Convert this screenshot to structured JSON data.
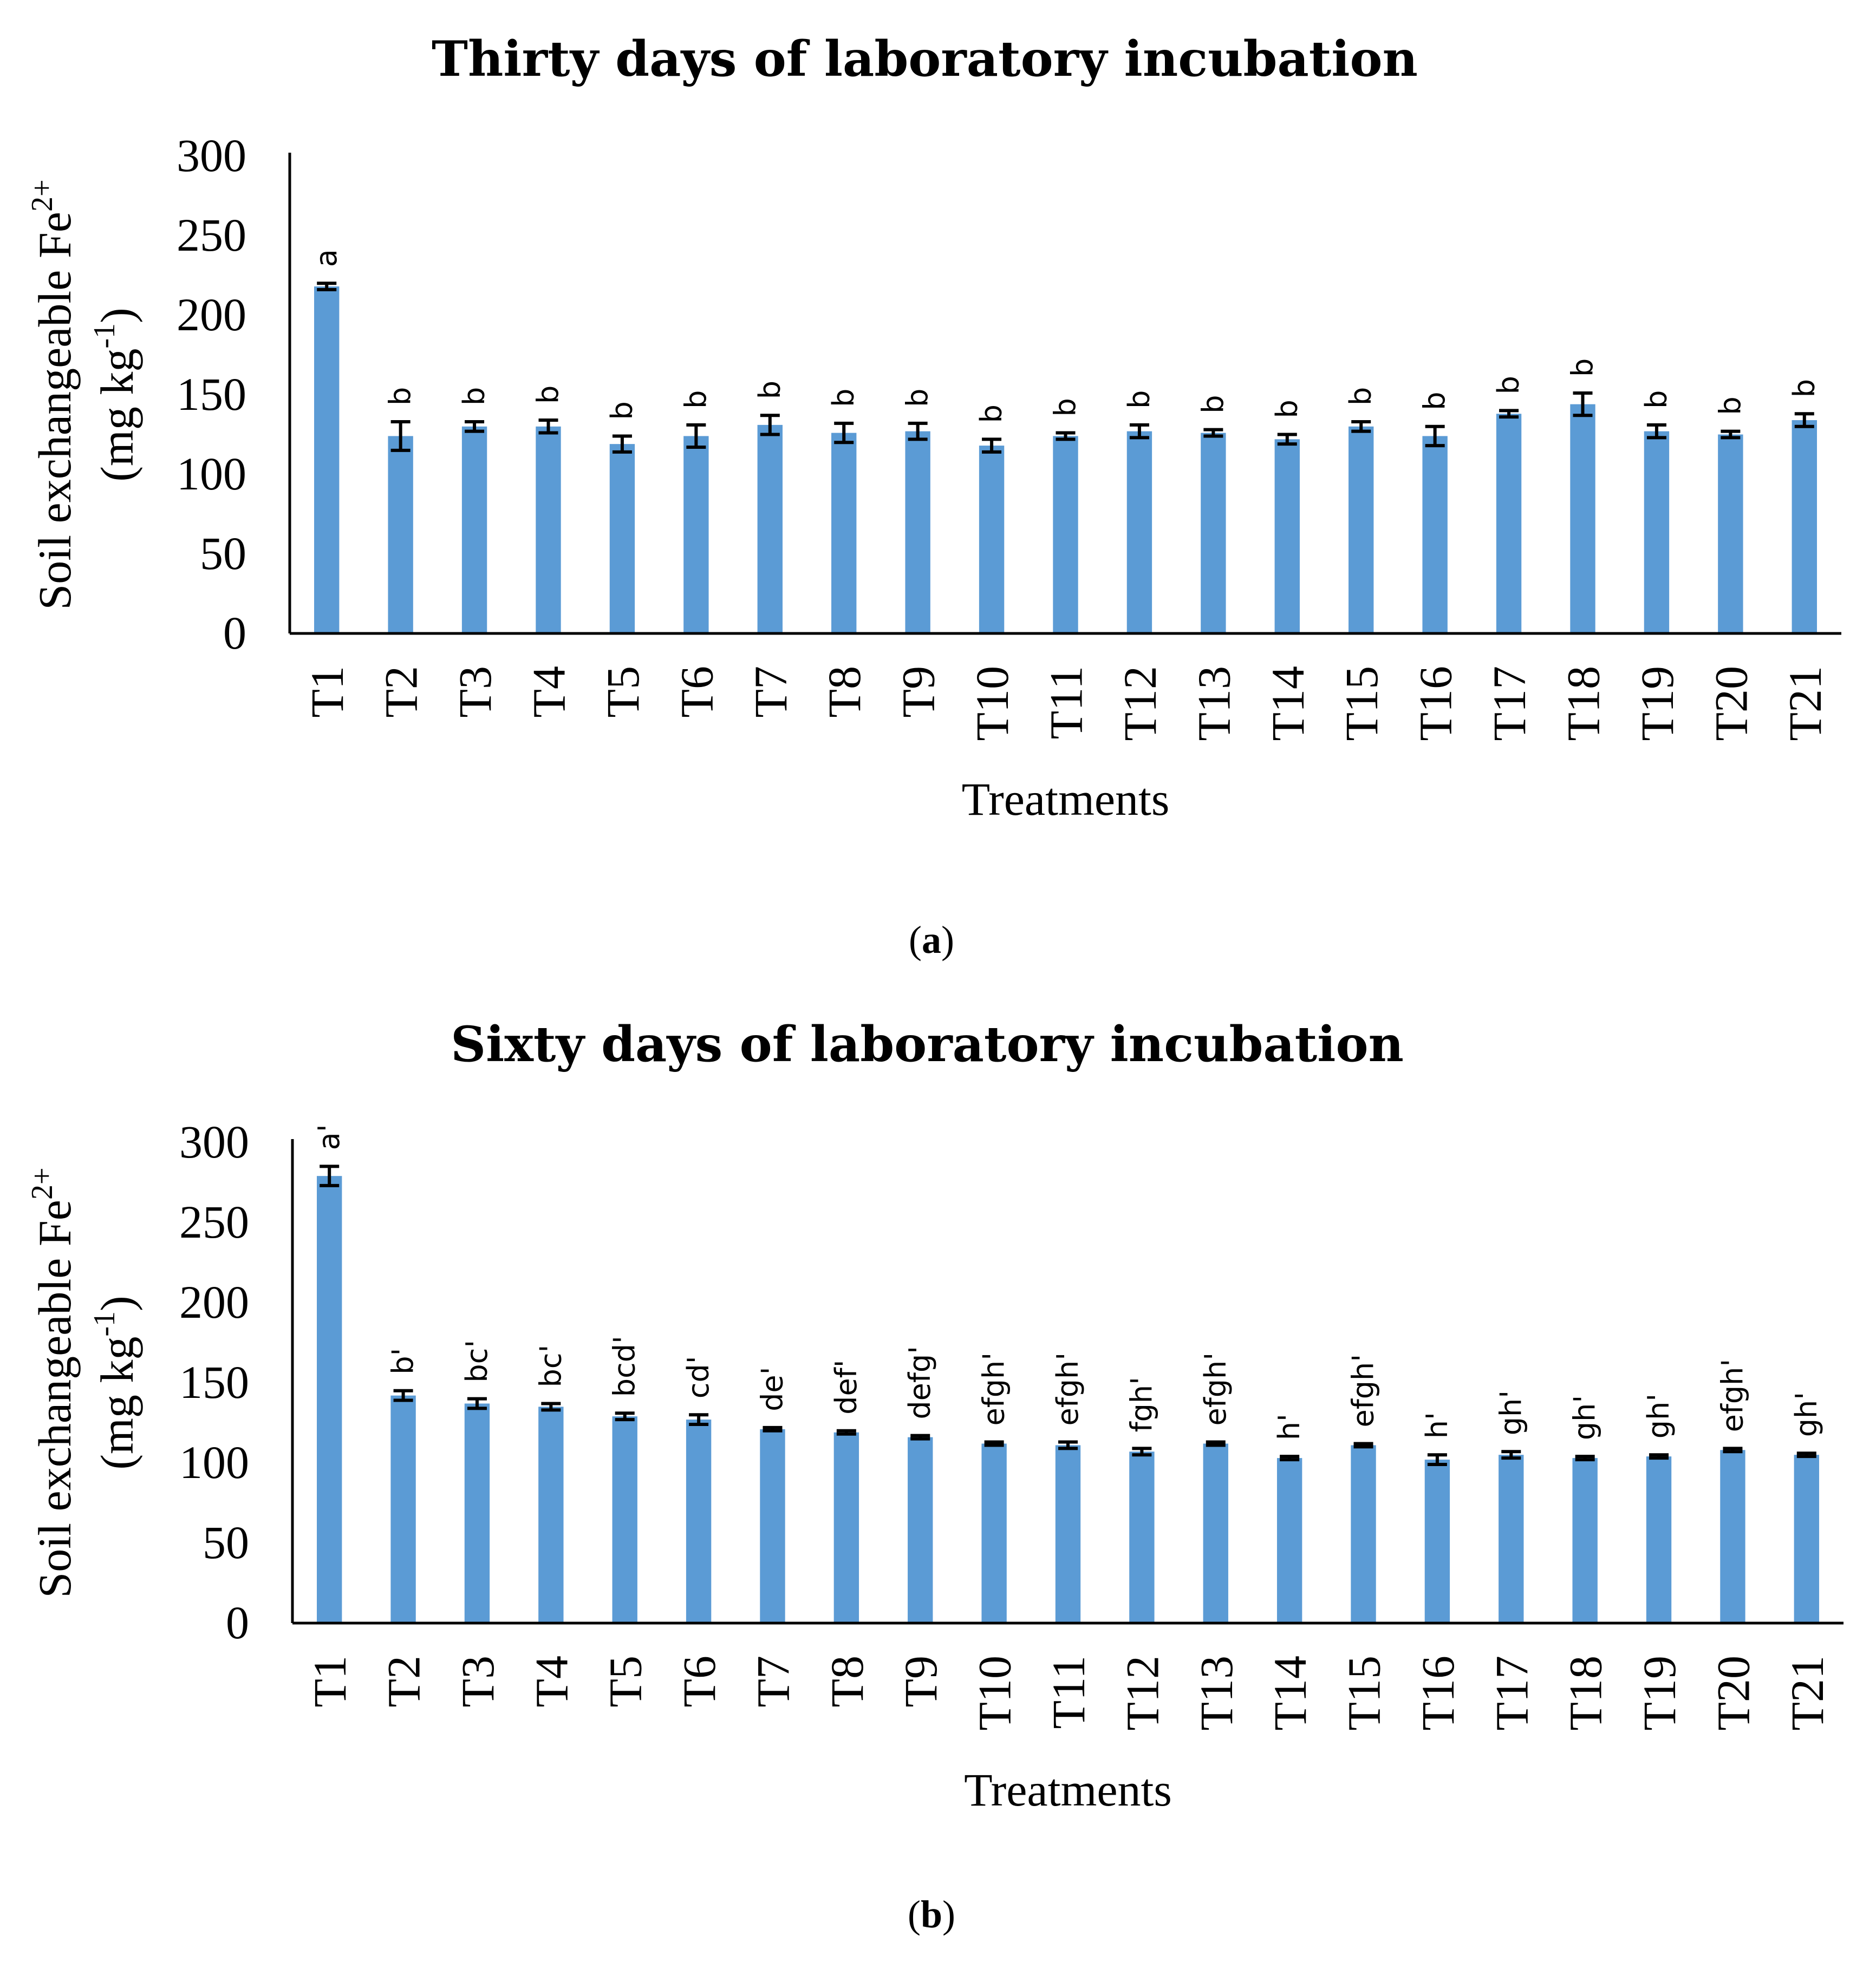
{
  "chart_data": [
    {
      "type": "bar",
      "title": "Thirty days of laboratory incubation",
      "xlabel": "Treatments",
      "ylabel": "Soil exchangeable Fe",
      "ylabel_superscript": "2+",
      "ylabel_unit_prefix": "(mg kg",
      "ylabel_unit_superscript": "-1",
      "ylabel_unit_suffix": ")",
      "ylim": [
        0,
        300
      ],
      "yticks": [
        "0",
        "50",
        "100",
        "150",
        "200",
        "250",
        "300"
      ],
      "panel_prefix": "(",
      "panel_letter": "a",
      "panel_suffix": ")",
      "bar_color": "#5b9bd5",
      "categories": [
        "T1",
        "T2",
        "T3",
        "T4",
        "T5",
        "T6",
        "T7",
        "T8",
        "T9",
        "T10",
        "T11",
        "T12",
        "T13",
        "T14",
        "T15",
        "T16",
        "T17",
        "T18",
        "T19",
        "T20",
        "T21"
      ],
      "values": [
        218,
        124,
        130,
        130,
        119,
        124,
        131,
        126,
        127,
        118,
        124,
        127,
        126,
        122,
        130,
        124,
        138,
        144,
        127,
        125,
        134
      ],
      "errors": [
        2,
        9,
        3,
        4,
        5,
        7,
        6,
        6,
        5,
        4,
        2,
        4,
        2,
        3,
        3,
        6,
        2,
        7,
        4,
        2,
        4
      ],
      "significance": [
        "a",
        "b",
        "b",
        "b",
        "b",
        "b",
        "b",
        "b",
        "b",
        "b",
        "b",
        "b",
        "b",
        "b",
        "b",
        "b",
        "b",
        "b",
        "b",
        "b",
        "b"
      ]
    },
    {
      "type": "bar",
      "title": "Sixty days of laboratory incubation",
      "xlabel": "Treatments",
      "ylabel": "Soil exchangeable Fe",
      "ylabel_superscript": "2+",
      "ylabel_unit_prefix": "(mg kg",
      "ylabel_unit_superscript": "-1",
      "ylabel_unit_suffix": ")",
      "ylim": [
        0,
        300
      ],
      "yticks": [
        "0",
        "50",
        "100",
        "150",
        "200",
        "250",
        "300"
      ],
      "panel_prefix": "(",
      "panel_letter": "b",
      "panel_suffix": ")",
      "bar_color": "#5b9bd5",
      "categories": [
        "T1",
        "T2",
        "T3",
        "T4",
        "T5",
        "T6",
        "T7",
        "T8",
        "T9",
        "T10",
        "T11",
        "T12",
        "T13",
        "T14",
        "T15",
        "T16",
        "T17",
        "T18",
        "T19",
        "T20",
        "T21"
      ],
      "values": [
        279,
        142,
        137,
        135,
        129,
        127,
        121,
        119,
        116,
        112,
        111,
        107,
        112,
        103,
        111,
        102,
        105,
        103,
        104,
        108,
        105
      ],
      "errors": [
        6,
        3,
        3,
        2,
        2,
        3,
        1,
        1,
        1,
        1,
        2,
        2,
        1,
        1,
        1,
        3,
        2,
        1,
        1,
        1,
        1
      ],
      "significance": [
        "a'",
        "b'",
        "bc'",
        "bc'",
        "bcd'",
        "cd'",
        "de'",
        "def'",
        "defg'",
        "efgh'",
        "efgh'",
        "fgh'",
        "efgh'",
        "h'",
        "efgh'",
        "h'",
        "gh'",
        "gh'",
        "gh'",
        "efgh'",
        "gh'"
      ]
    }
  ]
}
